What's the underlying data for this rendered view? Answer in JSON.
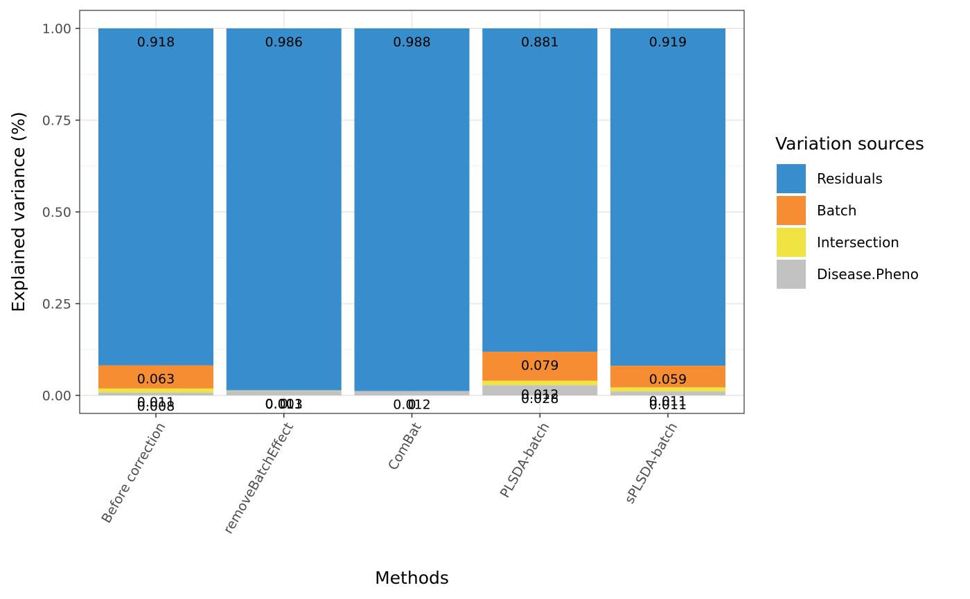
{
  "chart_data": {
    "type": "bar",
    "stacked": true,
    "xlabel": "Methods",
    "ylabel": "Explained variance (%)",
    "ylim": [
      0,
      1
    ],
    "y_ticks": [
      "0.00",
      "0.25",
      "0.50",
      "0.75",
      "1.00"
    ],
    "grid": true,
    "legend_placement": "right",
    "categories": [
      "Before correction",
      "removeBatchEffect",
      "ComBat",
      "PLSDA-batch",
      "sPLSDA-batch"
    ],
    "series": [
      {
        "name": "Disease.Pheno",
        "color": "#c2c2c2",
        "values": [
          0.008,
          0.013,
          0.012,
          0.028,
          0.011
        ],
        "labels": [
          "0.008",
          "0.013",
          "0.012",
          "0.028",
          "0.011"
        ]
      },
      {
        "name": "Intersection",
        "color": "#f0e442",
        "values": [
          0.011,
          0.001,
          0.0,
          0.012,
          0.011
        ],
        "labels": [
          "0.011",
          "0.001",
          "0",
          "0.012",
          "0.011"
        ]
      },
      {
        "name": "Batch",
        "color": "#f68d33",
        "values": [
          0.063,
          0.0,
          0.0,
          0.079,
          0.059
        ],
        "labels": [
          "0.063",
          "0",
          "0",
          "0.079",
          "0.059"
        ]
      },
      {
        "name": "Residuals",
        "color": "#388ecc",
        "values": [
          0.918,
          0.986,
          0.988,
          0.881,
          0.919
        ],
        "labels": [
          "0.918",
          "0.986",
          "0.988",
          "0.881",
          "0.919"
        ]
      }
    ],
    "legend": {
      "title": "Variation sources",
      "order": [
        "Residuals",
        "Batch",
        "Intersection",
        "Disease.Pheno"
      ]
    }
  }
}
